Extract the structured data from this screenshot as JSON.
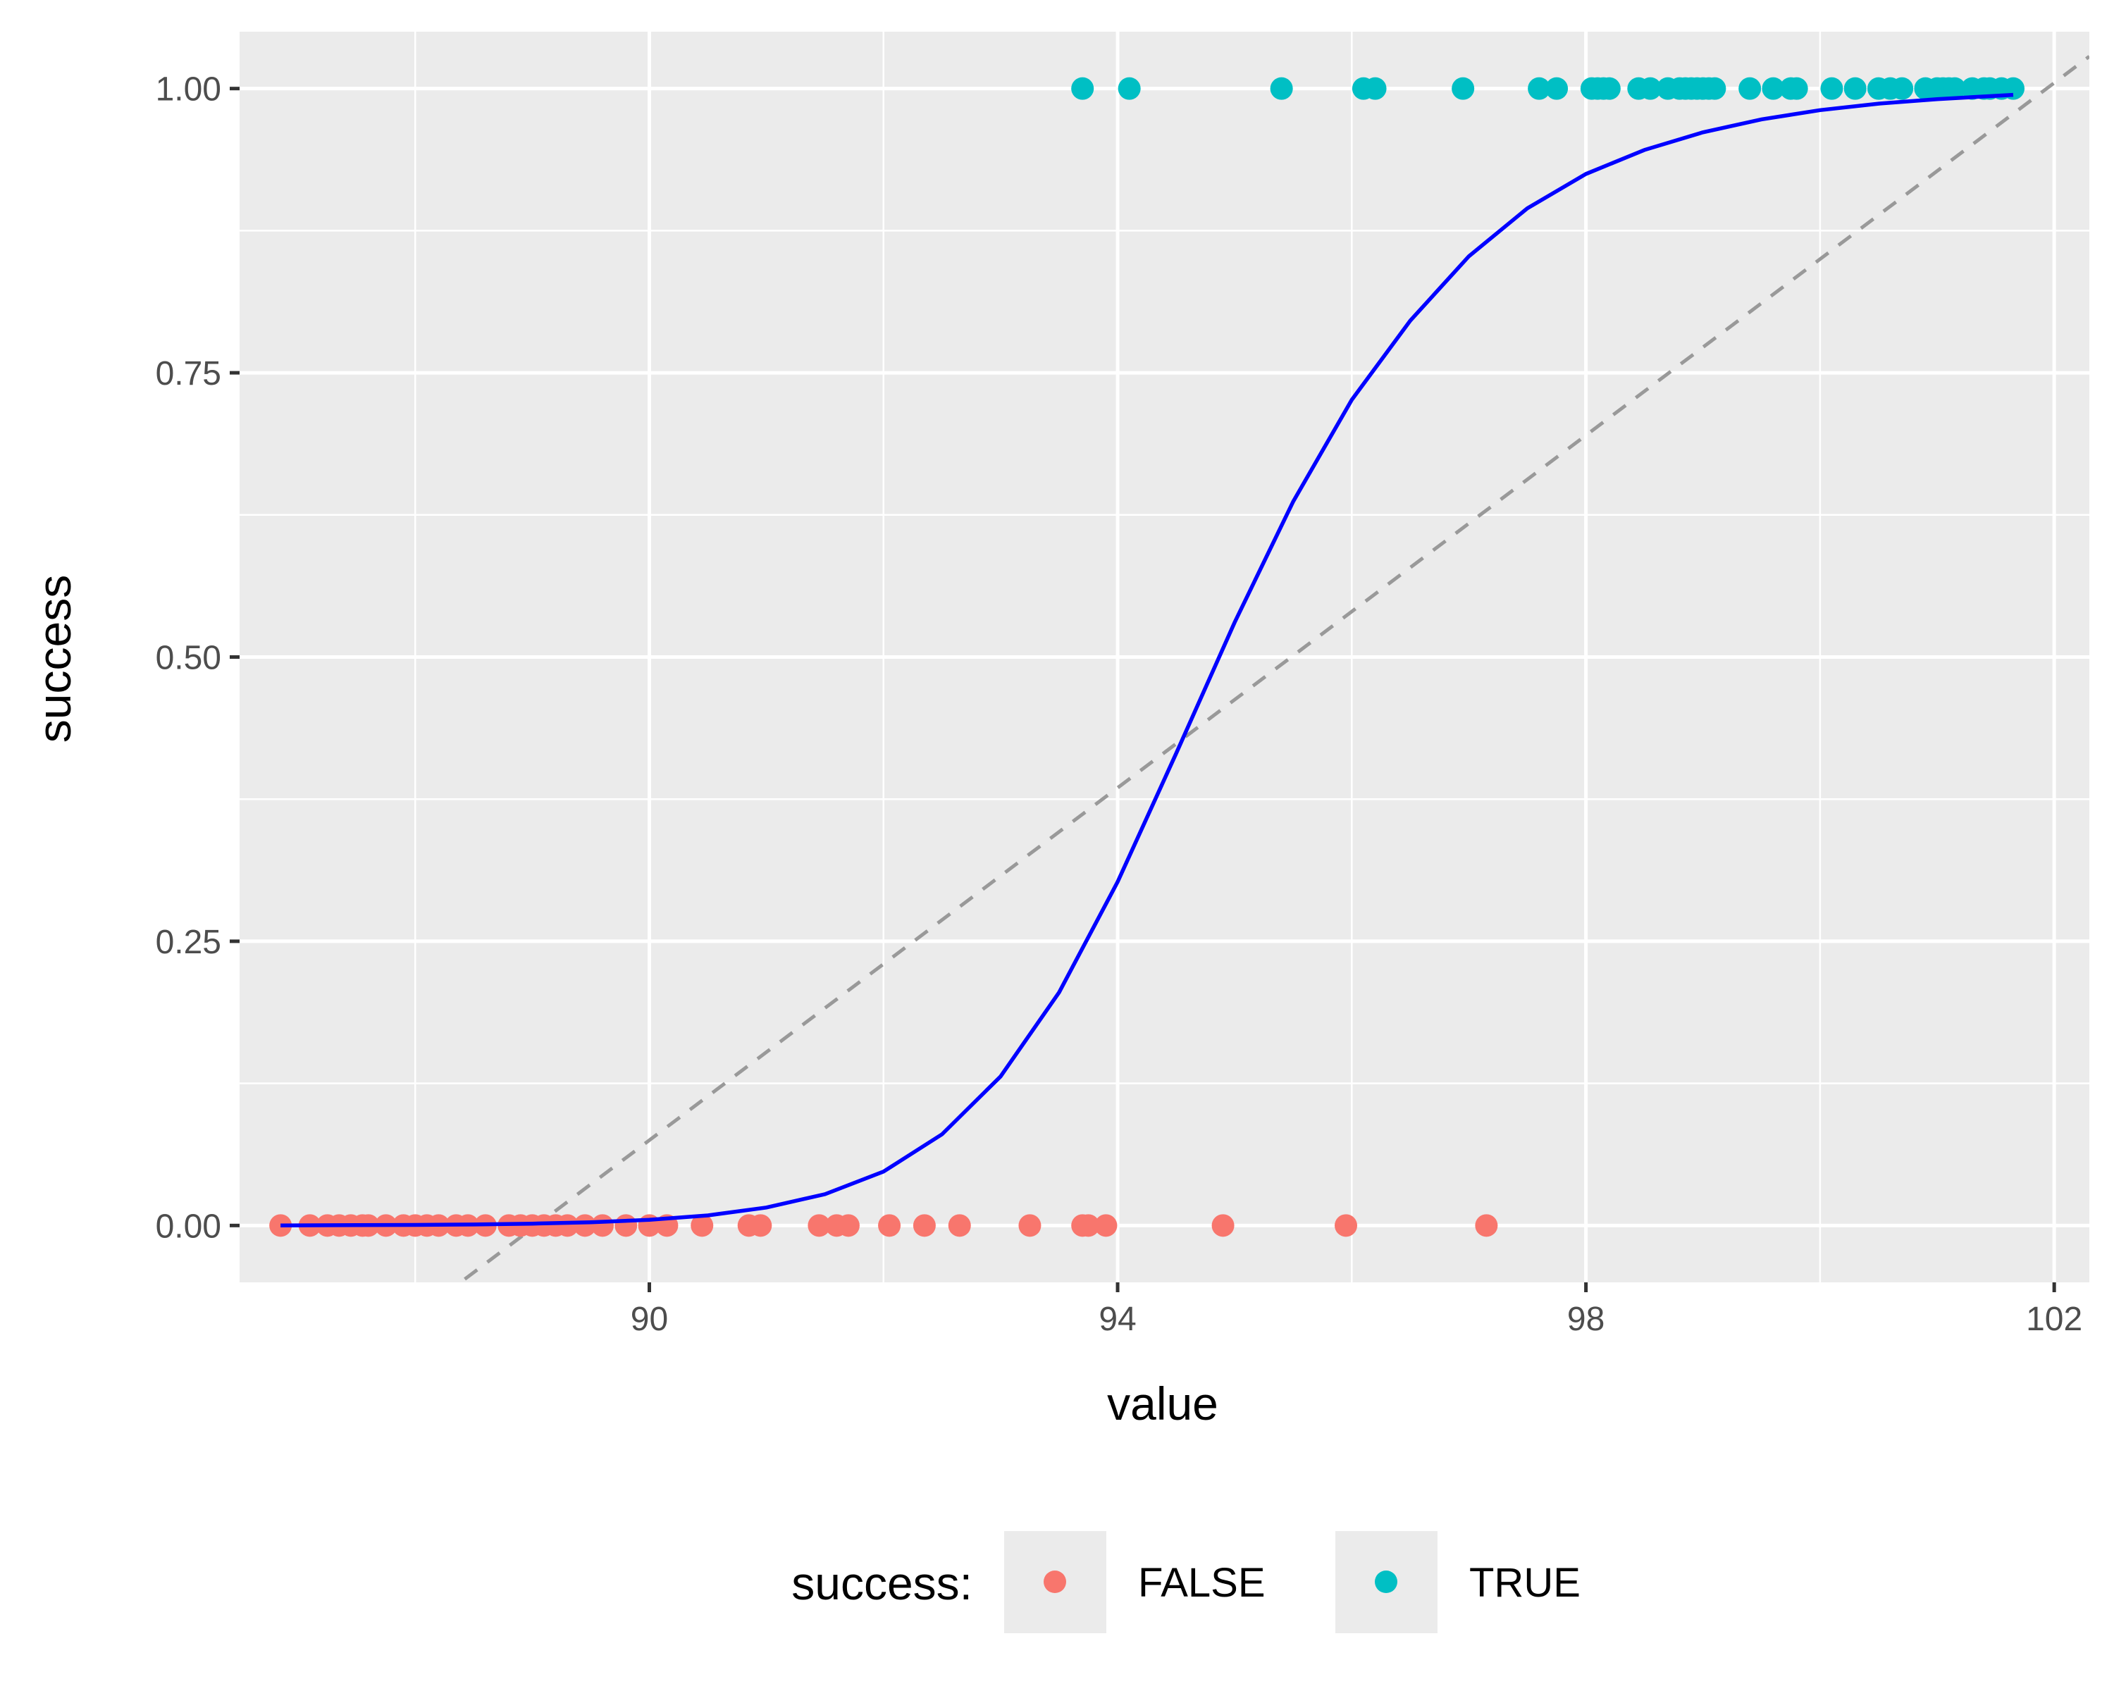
{
  "chart_data": {
    "type": "scatter",
    "xlabel": "value",
    "ylabel": "success",
    "xlim": [
      86.5,
      102.3
    ],
    "ylim": [
      -0.05,
      1.05
    ],
    "x_ticks": [
      90,
      94,
      98,
      102
    ],
    "x_minor_ticks": [
      88,
      92,
      96,
      100
    ],
    "y_ticks": [
      0.0,
      0.25,
      0.5,
      0.75,
      1.0
    ],
    "y_tick_labels": [
      "0.00",
      "0.25",
      "0.50",
      "0.75",
      "1.00"
    ],
    "y_minor_ticks": [
      0.125,
      0.375,
      0.625,
      0.875
    ],
    "grid": true,
    "legend": {
      "title": "success:",
      "position": "bottom",
      "entries": [
        {
          "label": "FALSE",
          "color": "#F8766D"
        },
        {
          "label": "TRUE",
          "color": "#00BFC4"
        }
      ]
    },
    "series": [
      {
        "name": "FALSE",
        "color": "#F8766D",
        "y": 0,
        "x": [
          86.85,
          87.1,
          87.25,
          87.35,
          87.45,
          87.55,
          87.6,
          87.75,
          87.9,
          88.0,
          88.1,
          88.2,
          88.35,
          88.45,
          88.6,
          88.8,
          88.9,
          89.0,
          89.1,
          89.2,
          89.3,
          89.45,
          89.6,
          89.8,
          90.0,
          90.15,
          90.45,
          90.85,
          90.95,
          91.45,
          91.6,
          91.7,
          92.05,
          92.35,
          92.65,
          93.25,
          93.7,
          93.75,
          93.9,
          94.9,
          95.95,
          97.15
        ]
      },
      {
        "name": "TRUE",
        "color": "#00BFC4",
        "y": 1,
        "x": [
          93.7,
          94.1,
          95.4,
          96.1,
          96.2,
          96.95,
          97.6,
          97.75,
          98.05,
          98.1,
          98.15,
          98.2,
          98.45,
          98.55,
          98.7,
          98.8,
          98.85,
          98.9,
          98.95,
          99.0,
          99.05,
          99.1,
          99.4,
          99.6,
          99.75,
          99.8,
          100.1,
          100.3,
          100.5,
          100.6,
          100.7,
          100.9,
          101.0,
          101.05,
          101.1,
          101.15,
          101.3,
          101.4,
          101.45,
          101.55,
          101.65
        ]
      }
    ],
    "fitted_curve": {
      "color": "#0000FF",
      "x": [
        86.85,
        87.5,
        88.0,
        88.5,
        89.0,
        89.5,
        90.0,
        90.5,
        91.0,
        91.5,
        92.0,
        92.5,
        93.0,
        93.5,
        94.0,
        94.5,
        95.0,
        95.5,
        96.0,
        96.5,
        97.0,
        97.5,
        98.0,
        98.5,
        99.0,
        99.5,
        100.0,
        100.5,
        101.0,
        101.65
      ],
      "y": [
        0.0001,
        0.0003,
        0.0005,
        0.0009,
        0.0016,
        0.0028,
        0.005,
        0.0089,
        0.0158,
        0.0275,
        0.0474,
        0.0802,
        0.1311,
        0.2051,
        0.3022,
        0.4152,
        0.5306,
        0.6369,
        0.7262,
        0.7959,
        0.8525,
        0.8947,
        0.9249,
        0.946,
        0.9615,
        0.9729,
        0.981,
        0.9867,
        0.9907,
        0.9945
      ]
    },
    "reference_line": {
      "color": "#999999",
      "style": "dashed",
      "intercept": -6.9,
      "slope": 0.0775
    }
  }
}
